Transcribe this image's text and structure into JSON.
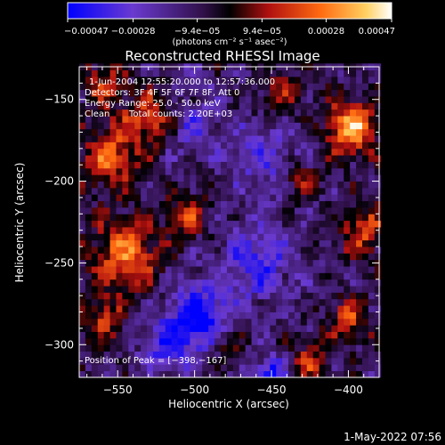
{
  "chart_data": {
    "type": "heatmap",
    "title": "Reconstructed RHESSI Image",
    "xlabel": "Heliocentric X (arcsec)",
    "ylabel": "Heliocentric Y (arcsec)",
    "xlim": [
      -575,
      -380
    ],
    "ylim": [
      -320,
      -130
    ],
    "x_ticks": [
      -550,
      -500,
      -450,
      -400
    ],
    "y_ticks": [
      -150,
      -200,
      -250,
      -300
    ],
    "x_tick_labels": [
      "−550",
      "−500",
      "−450",
      "−400"
    ],
    "y_tick_labels": [
      "−150",
      "−200",
      "−250",
      "−300"
    ],
    "colorbar": {
      "range": [
        -0.00047,
        0.00047
      ],
      "tick_values": [
        -0.00047,
        -0.00028,
        -9.4e-05,
        9.4e-05,
        0.00028,
        0.00047
      ],
      "tick_labels": [
        "−0.00047",
        "−0.00028",
        "−9.4e−05",
        "9.4e−05",
        "0.00028",
        "0.00047"
      ],
      "units": "(photons cm⁻² s⁻¹ asec⁻²)",
      "colormap": [
        "#0000ff",
        "#6a3ad0",
        "#301048",
        "#000000",
        "#b01010",
        "#ff6a10",
        "#ffd060",
        "#ffffff"
      ]
    },
    "annotations": {
      "time_range": "1-Jun-2004 12:55:20.000 to 12:57:36.000",
      "detectors": "Detectors: 3F 4F 5F 6F 7F 8F, Att 0",
      "energy_range": "Energy Range: 25.0 - 50.0 keV",
      "algorithm": "Clean",
      "total_counts": "Total counts: 2.20E+03",
      "peak_position": "Position of Peak = [−398,−167]"
    },
    "peak": {
      "x": -398,
      "y": -167
    },
    "bright_regions": [
      {
        "x": -398,
        "y": -167,
        "sigma": 12,
        "value": 0.00047
      },
      {
        "x": -545,
        "y": -245,
        "sigma": 16,
        "value": 0.00036
      },
      {
        "x": -555,
        "y": -185,
        "sigma": 14,
        "value": 0.00032
      },
      {
        "x": -530,
        "y": -160,
        "sigma": 12,
        "value": 0.0003
      },
      {
        "x": -505,
        "y": -220,
        "sigma": 10,
        "value": 0.00026
      },
      {
        "x": -560,
        "y": -285,
        "sigma": 10,
        "value": 0.00026
      },
      {
        "x": -390,
        "y": -230,
        "sigma": 12,
        "value": 0.00028
      },
      {
        "x": -400,
        "y": -285,
        "sigma": 10,
        "value": 0.00028
      },
      {
        "x": -425,
        "y": -310,
        "sigma": 9,
        "value": 0.00025
      },
      {
        "x": -430,
        "y": -200,
        "sigma": 8,
        "value": 0.00022
      },
      {
        "x": -560,
        "y": -140,
        "sigma": 10,
        "value": 0.00025
      },
      {
        "x": -480,
        "y": -300,
        "sigma": 9,
        "value": 0.00018
      },
      {
        "x": -445,
        "y": -145,
        "sigma": 10,
        "value": 0.0002
      }
    ],
    "dark_regions": [
      {
        "x": -498,
        "y": -285,
        "sigma": 14,
        "value": -0.0004
      },
      {
        "x": -460,
        "y": -250,
        "sigma": 16,
        "value": -0.00024
      },
      {
        "x": -455,
        "y": -185,
        "sigma": 14,
        "value": -0.00018
      },
      {
        "x": -450,
        "y": -318,
        "sigma": 8,
        "value": -0.00032
      },
      {
        "x": -500,
        "y": -165,
        "sigma": 12,
        "value": -0.00016
      },
      {
        "x": -520,
        "y": -300,
        "sigma": 10,
        "value": -0.00022
      }
    ]
  },
  "timestamp": "1-May-2022 07:56"
}
